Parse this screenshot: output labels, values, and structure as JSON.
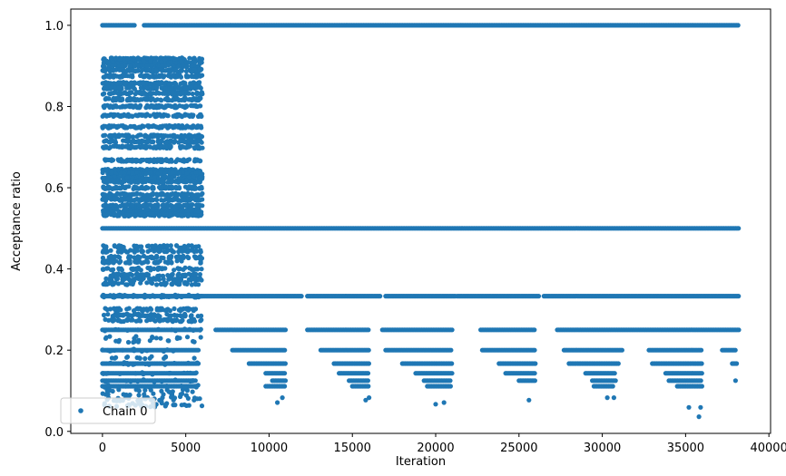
{
  "chart_data": {
    "type": "scatter",
    "xlabel": "Iteration",
    "ylabel": "Acceptance ratio",
    "xlim": [
      -1900,
      40100
    ],
    "ylim": [
      -0.005,
      1.04
    ],
    "xticks": [
      0,
      5000,
      10000,
      15000,
      20000,
      25000,
      30000,
      35000,
      40000
    ],
    "xtick_labels": [
      "0",
      "5000",
      "10000",
      "15000",
      "20000",
      "25000",
      "30000",
      "35000",
      "40000"
    ],
    "yticks": [
      0.0,
      0.2,
      0.4,
      0.6,
      0.8,
      1.0
    ],
    "ytick_labels": [
      "0.0",
      "0.2",
      "0.4",
      "0.6",
      "0.8",
      "1.0"
    ],
    "legend": {
      "position": "lower-left",
      "entries": [
        "Chain 0"
      ]
    },
    "series": [
      {
        "name": "Chain 0",
        "color": "#1f77b4",
        "marker": "circle",
        "num_iterations": 38200,
        "level_bands": [
          {
            "y": 1.0,
            "x_ranges": [
              [
                0,
                2000
              ],
              [
                2500,
                38200
              ]
            ]
          },
          {
            "y": 0.5,
            "x_ranges": [
              [
                0,
                38200
              ]
            ]
          },
          {
            "y": 0.333,
            "x_ranges": [
              [
                0,
                12000
              ],
              [
                12300,
                16700
              ],
              [
                17000,
                21200
              ],
              [
                21300,
                26200
              ],
              [
                26500,
                38200
              ]
            ]
          },
          {
            "y": 0.25,
            "x_ranges": [
              [
                0,
                5800
              ],
              [
                6800,
                11000
              ],
              [
                12300,
                16000
              ],
              [
                16800,
                21000
              ],
              [
                22700,
                26000
              ],
              [
                27300,
                38200
              ]
            ]
          },
          {
            "y": 0.2,
            "x_ranges": [
              [
                0,
                5800
              ],
              [
                7800,
                11000
              ],
              [
                13100,
                16000
              ],
              [
                17000,
                21000
              ],
              [
                22800,
                26000
              ],
              [
                27700,
                31200
              ],
              [
                32800,
                36000
              ],
              [
                37200,
                38000
              ]
            ]
          },
          {
            "y": 0.167,
            "x_ranges": [
              [
                0,
                5800
              ],
              [
                8800,
                11000
              ],
              [
                13900,
                16000
              ],
              [
                18000,
                21000
              ],
              [
                23800,
                26000
              ],
              [
                28000,
                31000
              ],
              [
                33000,
                36000
              ],
              [
                37800,
                38100
              ]
            ]
          },
          {
            "y": 0.143,
            "x_ranges": [
              [
                0,
                5600
              ],
              [
                9800,
                11000
              ],
              [
                14200,
                16000
              ],
              [
                18800,
                21000
              ],
              [
                24200,
                26000
              ],
              [
                29000,
                30800
              ],
              [
                33800,
                36000
              ]
            ]
          },
          {
            "y": 0.125,
            "x_ranges": [
              [
                0,
                5600
              ],
              [
                10200,
                11000
              ],
              [
                14800,
                16000
              ],
              [
                19300,
                20900
              ],
              [
                25000,
                26000
              ],
              [
                29400,
                30800
              ],
              [
                34000,
                36000
              ]
            ]
          },
          {
            "y": 0.111,
            "x_ranges": [
              [
                0,
                5600
              ],
              [
                9800,
                11000
              ],
              [
                15000,
                16000
              ],
              [
                19500,
                20900
              ],
              [
                29500,
                30700
              ],
              [
                34500,
                36000
              ]
            ]
          }
        ],
        "dense_block_x_range": [
          0,
          6000
        ],
        "dense_block_levels": [
          0.917,
          0.909,
          0.9,
          0.889,
          0.875,
          0.857,
          0.846,
          0.833,
          0.818,
          0.8,
          0.778,
          0.75,
          0.727,
          0.714,
          0.7,
          0.667,
          0.643,
          0.636,
          0.625,
          0.615,
          0.6,
          0.583,
          0.571,
          0.556,
          0.545,
          0.538,
          0.533,
          0.455,
          0.444,
          0.429,
          0.417,
          0.4,
          0.385,
          0.375,
          0.364,
          0.333,
          0.3,
          0.286,
          0.273,
          0.25,
          0.231,
          0.222,
          0.2,
          0.182,
          0.167,
          0.143,
          0.125,
          0.111,
          0.1,
          0.091,
          0.083,
          0.077,
          0.067,
          0.063
        ],
        "sparse_low_points": [
          [
            30,
            0.143
          ],
          [
            300,
            0.1
          ],
          [
            800,
            0.182
          ],
          [
            1400,
            0.111
          ],
          [
            1500,
            0.063
          ],
          [
            2200,
            0.1
          ],
          [
            2500,
            0.091
          ],
          [
            3000,
            0.111
          ],
          [
            3600,
            0.083
          ],
          [
            4300,
            0.111
          ],
          [
            4700,
            0.091
          ],
          [
            5500,
            0.077
          ],
          [
            10500,
            0.071
          ],
          [
            10800,
            0.083
          ],
          [
            15800,
            0.077
          ],
          [
            16000,
            0.083
          ],
          [
            20000,
            0.067
          ],
          [
            20500,
            0.071
          ],
          [
            25600,
            0.077
          ],
          [
            30300,
            0.083
          ],
          [
            30700,
            0.083
          ],
          [
            35200,
            0.059
          ],
          [
            35800,
            0.036
          ],
          [
            35900,
            0.059
          ],
          [
            38000,
            0.125
          ]
        ]
      }
    ]
  }
}
